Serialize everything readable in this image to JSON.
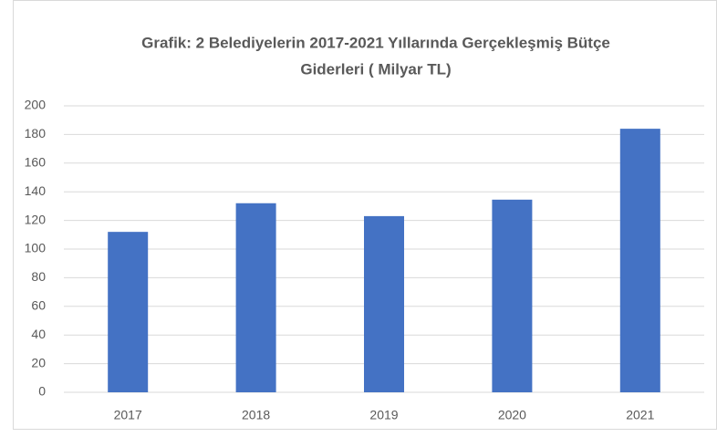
{
  "chart_data": {
    "type": "bar",
    "title": [
      "Grafik: 2 Belediyelerin 2017-2021 Yıllarında Gerçekleşmiş Bütçe",
      "Giderleri ( Milyar TL)"
    ],
    "categories": [
      "2017",
      "2018",
      "2019",
      "2020",
      "2021"
    ],
    "values": [
      112,
      132,
      123,
      134.5,
      184
    ],
    "color": "#4472c4",
    "ylim": [
      0,
      200
    ],
    "yticks": [
      0,
      20,
      40,
      60,
      80,
      100,
      120,
      140,
      160,
      180,
      200
    ],
    "grid": true
  }
}
